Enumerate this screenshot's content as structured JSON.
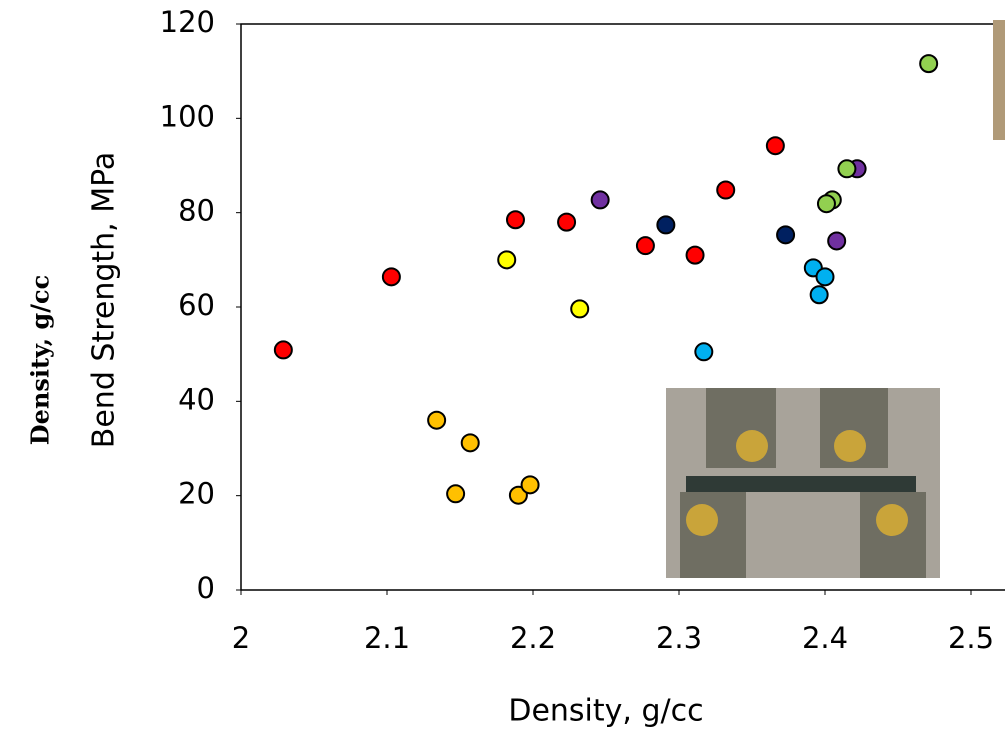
{
  "chart_data": {
    "type": "scatter",
    "x_label": "Density, g/cc",
    "y_label": "Bend Strength, MPa",
    "side_label": "Density, g/cc",
    "xlim": [
      2,
      2.5
    ],
    "xticks": [
      {
        "value": 2,
        "label": "2"
      },
      2.1,
      2.2,
      2.3,
      2.4,
      2.5
    ],
    "ylim": [
      0,
      120
    ],
    "yticks": [
      0,
      20,
      40,
      60,
      80,
      100,
      120
    ],
    "series": [
      {
        "color": "#ff0000",
        "x": [
          2.029,
          2.103,
          2.188,
          2.223,
          2.277,
          2.311,
          2.332,
          2.366
        ],
        "values": [
          50.9,
          66.4,
          78.5,
          78,
          73,
          71,
          84.8,
          94.2
        ]
      },
      {
        "color": "#ffff00",
        "x": [
          2.182,
          2.232
        ],
        "values": [
          70,
          59.6
        ]
      },
      {
        "color": "#ffc000",
        "x": [
          2.134,
          2.157,
          2.147,
          2.19,
          2.198
        ],
        "values": [
          36,
          31.2,
          20.4,
          20.1,
          22.3
        ]
      },
      {
        "color": "#7030a0",
        "x": [
          2.246,
          2.408,
          2.422
        ],
        "values": [
          82.7,
          74,
          89.3
        ]
      },
      {
        "color": "#002060",
        "x": [
          2.291,
          2.373
        ],
        "values": [
          77.4,
          75.3
        ]
      },
      {
        "color": "#00b0f0",
        "x": [
          2.317,
          2.392,
          2.4,
          2.396
        ],
        "values": [
          50.5,
          68.3,
          66.4,
          62.6
        ]
      },
      {
        "color": "#92d050",
        "x": [
          2.471,
          2.415,
          2.405,
          2.401
        ],
        "values": [
          111.6,
          89.3,
          82.7,
          81.9
        ]
      }
    ]
  }
}
